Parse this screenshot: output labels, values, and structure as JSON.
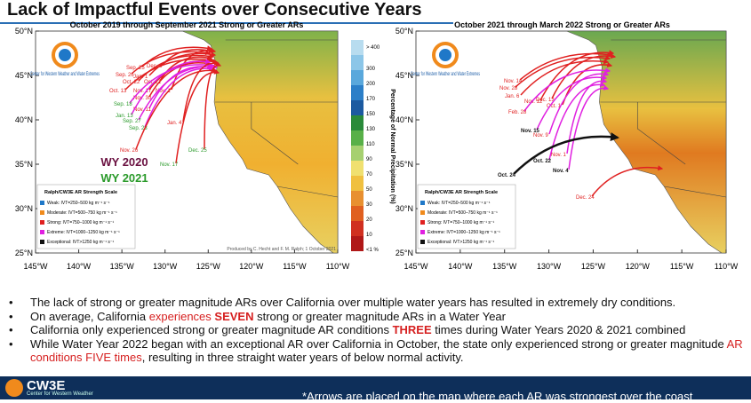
{
  "header": {
    "title": "Lack of Impactful Events over Consecutive Years"
  },
  "maps": [
    {
      "subtitle": "October 2019 through September 2021 Strong or Greater ARs",
      "lat_labels": [
        "50°N",
        "45°N",
        "40°N",
        "35°N",
        "30°N",
        "25°N"
      ],
      "lon_labels": [
        "145°W",
        "140°W",
        "135°W",
        "130°W",
        "125°W",
        "120°W",
        "115°W",
        "110°W"
      ],
      "logo_text": "Center for Western Weather and Water Extremes",
      "dates": [
        "Sep. 25",
        "Dec. 8",
        "Sep. 26",
        "Jan. 1",
        "Oct. 22",
        "Oct. 21",
        "Oct. 13",
        "Nov. 17",
        "Nov. 1",
        "Nov. 30",
        "Sep. 18",
        "Nov. 11",
        "Jan. 13",
        "Sep. 27",
        "Sep. 23",
        "Jan. 4",
        "Nov. 26",
        "Dec. 25",
        "Nov. 17"
      ],
      "water_years": [
        "WY 2020",
        "WY 2021"
      ],
      "legend_title": "Ralph/CW3E AR Strength Scale",
      "legend_items": [
        "Weak: IVT=250–500 kg m⁻¹ s⁻¹",
        "Moderate: IVT=500–750 kg m⁻¹ s⁻¹",
        "Strong: IVT=750–1000 kg m⁻¹ s⁻¹",
        "Extreme: IVT=1000–1250 kg m⁻¹ s⁻¹",
        "Exceptional: IVT>1250 kg m⁻¹ s⁻¹"
      ],
      "credit": "Produced by C. Hecht and F. M. Ralph; 1 October 2021"
    },
    {
      "subtitle": "October 2021 through March 2022 Strong or Greater ARs",
      "lat_labels": [
        "50°N",
        "45°N",
        "40°N",
        "35°N",
        "30°N",
        "25°N"
      ],
      "lon_labels": [
        "145°W",
        "140°W",
        "135°W",
        "130°W",
        "125°W",
        "120°W",
        "115°W",
        "110°W"
      ],
      "logo_text": "Center for Western Weather and Water Extremes",
      "dates": [
        "Nov. 14",
        "Nov. 28",
        "Jan. 6",
        "Nov. 12",
        "Dec. 13",
        "Oct. 1",
        "Feb. 28",
        "Nov. 15",
        "Nov. 9",
        "Nov. 1",
        "Oct. 22",
        "Nov. 4",
        "Oct. 24",
        "Dec. 24"
      ],
      "legend_title": "Ralph/CW3E AR Strength Scale",
      "legend_items": [
        "Weak: IVT=250–500 kg m⁻¹ s⁻¹",
        "Moderate: IVT=500–750 kg m⁻¹ s⁻¹",
        "Strong: IVT=750–1000 kg m⁻¹ s⁻¹",
        "Extreme: IVT=1000–1250 kg m⁻¹ s⁻¹",
        "Exceptional: IVT>1250 kg m⁻¹ s⁻¹"
      ]
    }
  ],
  "colorbar": {
    "labels": [
      "> 400",
      "300",
      "200",
      "170",
      "150",
      "130",
      "110",
      "90",
      "70",
      "50",
      "30",
      "20",
      "10",
      "<1 %"
    ],
    "title": "Percentage of Normal Precipitation (%)"
  },
  "bullets": [
    [
      {
        "text": "The lack of strong or greater magnitude ARs over California over multiple water years has resulted in extremely dry conditions."
      }
    ],
    [
      {
        "text": "On average, California "
      },
      {
        "text": "experiences ",
        "style": "red"
      },
      {
        "text": "SEVEN",
        "style": "redbold"
      },
      {
        "text": " strong or greater magnitude ARs in a Water Year"
      }
    ],
    [
      {
        "text": "California only experienced strong or greater magnitude AR conditions "
      },
      {
        "text": "THREE",
        "style": "redbold"
      },
      {
        "text": " times during Water Years 2020 & 2021 combined"
      }
    ],
    [
      {
        "text": "While Water Year 2022 began with an exceptional AR over California in October, the state only experienced strong or greater magnitude "
      },
      {
        "text": "AR conditions FIVE times",
        "style": "red"
      },
      {
        "text": ", resulting in three straight water years of below normal activity."
      }
    ]
  ],
  "footer": {
    "logo": "CW3E",
    "logo_sub": "Center for Western Weather",
    "note": "*Arrows are placed on the map where each AR was strongest over the coast"
  }
}
